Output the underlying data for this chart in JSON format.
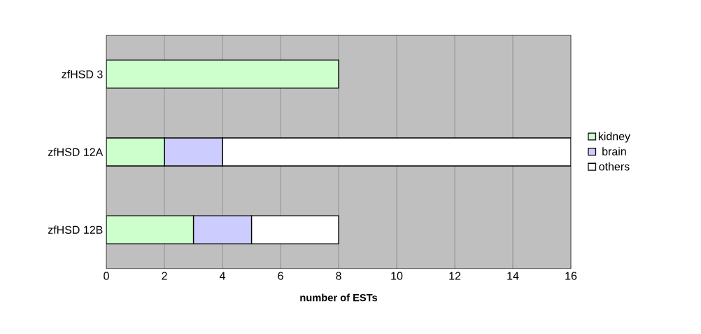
{
  "chart_data": {
    "type": "bar",
    "orientation": "horizontal",
    "stacked": true,
    "xlabel": "number of ESTs",
    "categories": [
      "zfHSD 3",
      "zfHSD 12A",
      "zfHSD 12B"
    ],
    "series": [
      {
        "name": "kidney",
        "color": "#ccffcc",
        "values": [
          8,
          2,
          3
        ]
      },
      {
        "name": "brain",
        "color": "#ccccff",
        "values": [
          0,
          2,
          2
        ]
      },
      {
        "name": "others",
        "color": "#ffffff",
        "values": [
          0,
          12,
          3
        ]
      }
    ],
    "xlim": [
      0,
      16
    ],
    "xticks": [
      0,
      2,
      4,
      6,
      8,
      10,
      12,
      14,
      16
    ],
    "grid": "x",
    "legend": "right"
  }
}
